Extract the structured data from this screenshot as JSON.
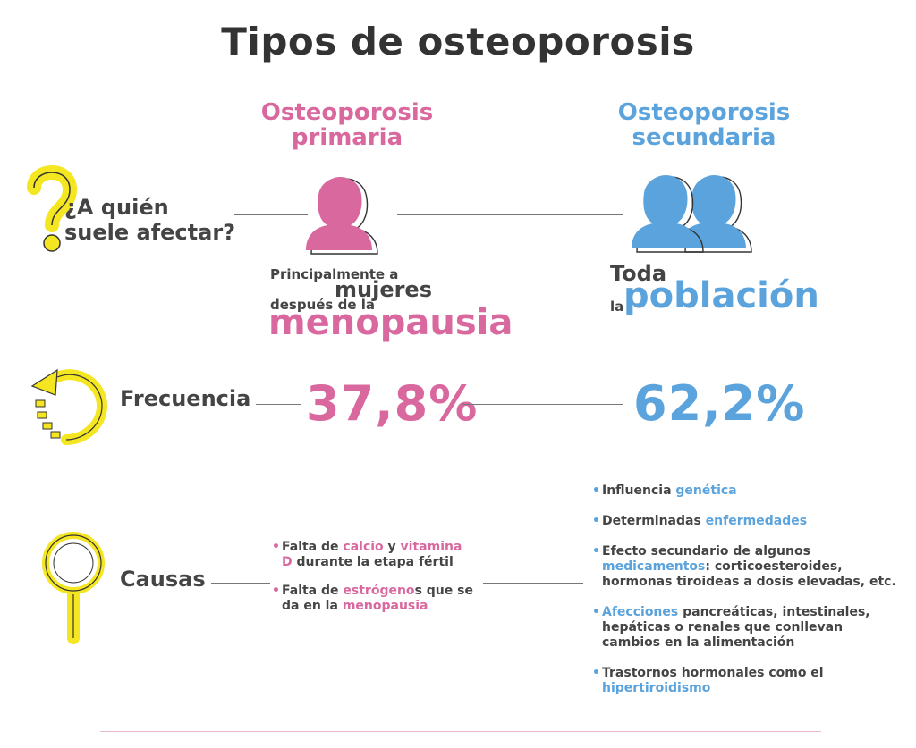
{
  "title": "Tipos de osteoporosis",
  "columns": {
    "primary": {
      "line1": "Osteoporosis",
      "line2": "primaria"
    },
    "secondary": {
      "line1": "Osteoporosis",
      "line2": "secundaria"
    }
  },
  "rows": {
    "who": {
      "label_line1": "¿A quién",
      "label_line2": "suele afectar?",
      "primary": {
        "t1": "Principalmente a",
        "t2": "mujeres",
        "t3": "después de la",
        "t4": "menopausia"
      },
      "secondary": {
        "t1": "Toda",
        "t2": "la",
        "t3": "población"
      }
    },
    "frequency": {
      "label": "Frecuencia",
      "primary_value": "37,8%",
      "secondary_value": "62,2%"
    },
    "causes": {
      "label": "Causas",
      "primary_items": [
        {
          "a": "Falta de ",
          "b": "calcio",
          "c": " y ",
          "d": "vitamina D",
          "e": " durante la etapa fértil"
        },
        {
          "a": "Falta de ",
          "b": "estrógeno",
          "c": "s que se da en la ",
          "d": "menopausia"
        }
      ],
      "secondary_items": [
        {
          "a": "Influencia ",
          "b": "genética"
        },
        {
          "a": "Determinadas ",
          "b": "enfermedades"
        },
        {
          "a": "Efecto secundario de algunos ",
          "b": "medicamentos",
          "c": ": corticoesteroides, hormonas tiroideas a dosis elevadas, etc."
        },
        {
          "b": "Afecciones",
          "c": " pancreáticas, intestinales, hepáticas o renales que conllevan cambios en la alimentación"
        },
        {
          "a": "Trastornos hormonales como el ",
          "b": "hipertiroidismo"
        }
      ]
    }
  },
  "colors": {
    "pink": "#d9689e",
    "blue": "#5ba3dc",
    "yellow": "#f4e620",
    "text": "#444444"
  },
  "icons": [
    "question-mark-icon",
    "woman-silhouette-icon",
    "two-women-silhouette-icon",
    "circular-arrow-icon",
    "magnifying-glass-icon"
  ]
}
